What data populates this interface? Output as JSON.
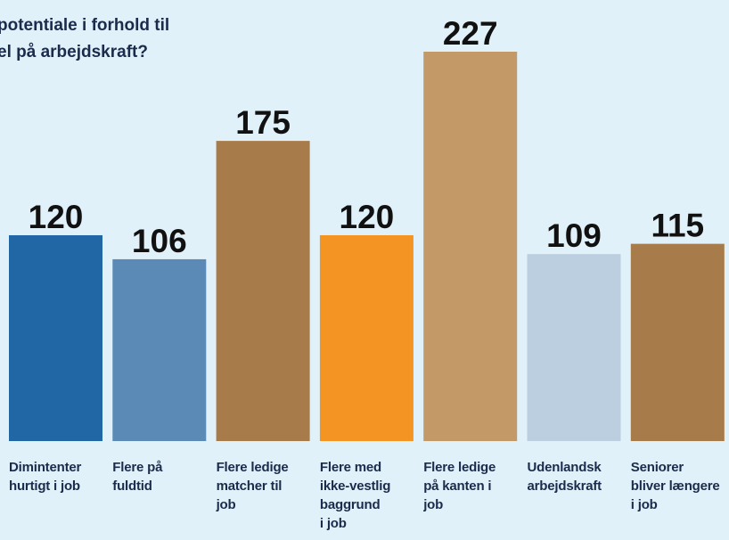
{
  "chart_data": {
    "type": "bar",
    "title": "potentiale i forhold til\nel på arbejdskraft?",
    "categories": [
      "Dimintenter\nhurtigt i job",
      "Flere på\nfuldtid",
      "Flere ledige\nmatcher til\njob",
      "Flere med\nikke-vestlig\nbaggrund\ni job",
      "Flere ledige\npå kanten i\n job",
      "Udenlandsk\narbejdskraft",
      "Seniorer\nbliver længere\ni job"
    ],
    "values": [
      120,
      106,
      175,
      120,
      227,
      109,
      115
    ],
    "colors": [
      "#2166a5",
      "#5a8ab5",
      "#a87b4b",
      "#f39423",
      "#c39a67",
      "#bccfe0",
      "#a87b4b"
    ]
  }
}
